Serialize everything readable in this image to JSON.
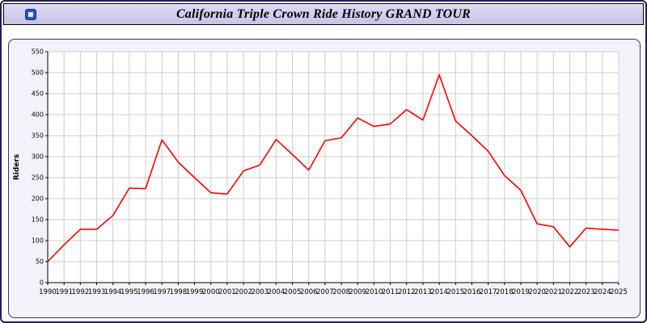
{
  "title_bar": {
    "title": "California Triple Crown Ride History GRAND TOUR"
  },
  "chart_data": {
    "type": "line",
    "title": "California Triple Crown Ride History GRAND TOUR",
    "xlabel": "",
    "ylabel": "Riders",
    "ylim": [
      0,
      550
    ],
    "ytick_step": 50,
    "grid": true,
    "legend": "none",
    "line_color": "#ff0000",
    "categories": [
      1990,
      1991,
      1992,
      1993,
      1994,
      1995,
      1996,
      1997,
      1998,
      1999,
      2000,
      2001,
      2002,
      2003,
      2004,
      2005,
      2006,
      2007,
      2008,
      2009,
      2010,
      2011,
      2012,
      2013,
      2014,
      2015,
      2016,
      2017,
      2018,
      2019,
      2020,
      2021,
      2022,
      2023,
      2024,
      2025
    ],
    "values": [
      50,
      90,
      127,
      127,
      160,
      225,
      224,
      340,
      287,
      250,
      214,
      211,
      266,
      280,
      341,
      305,
      268,
      338,
      345,
      392,
      372,
      378,
      412,
      387,
      495,
      385,
      350,
      313,
      255,
      220,
      140,
      133,
      85,
      130,
      127,
      125
    ]
  },
  "colors": {
    "frame_border": "#1f1f55",
    "titlebar_bg": "#ccc9ec",
    "panel_bg": "#f2f2fb",
    "panel_border": "#333366",
    "grid": "#cccccc",
    "plot_bg": "#ffffff"
  }
}
